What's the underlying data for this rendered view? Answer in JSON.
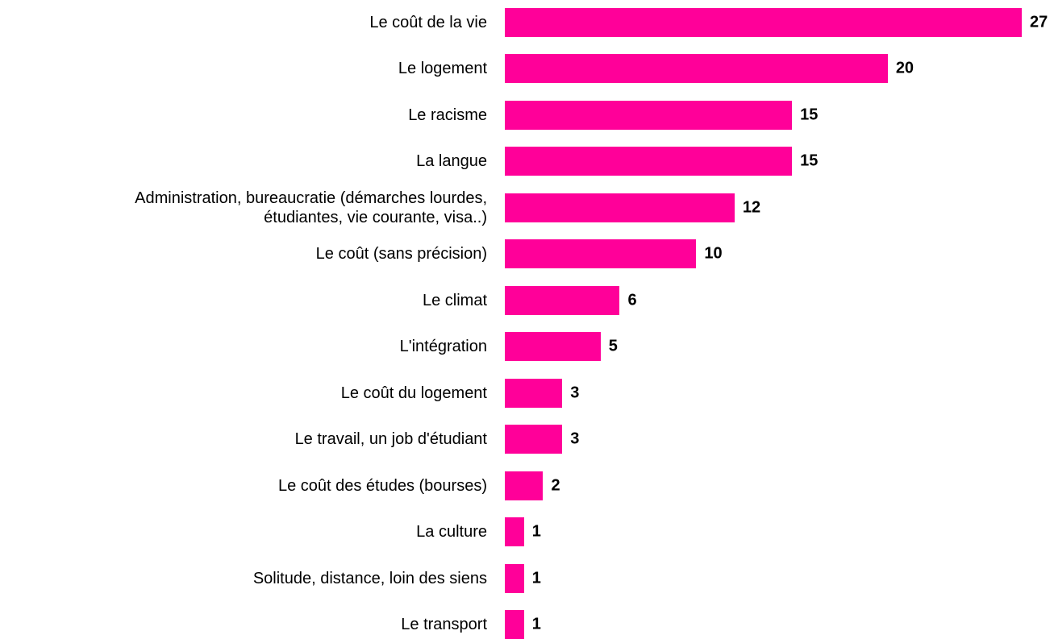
{
  "chart_data": {
    "type": "bar",
    "orientation": "horizontal",
    "color": "#ff0099",
    "categories": [
      "Le coût de la vie",
      "Le logement",
      "Le racisme",
      "La langue",
      "Administration, bureaucratie (démarches lourdes,\nétudiantes, vie courante, visa..)",
      "Le coût (sans précision)",
      "Le climat",
      "L'intégration",
      "Le coût du logement",
      "Le travail, un job d'étudiant",
      "Le coût des études (bourses)",
      "La culture",
      "Solitude, distance, loin des siens",
      "Le transport"
    ],
    "values": [
      27,
      20,
      15,
      15,
      12,
      10,
      6,
      5,
      3,
      3,
      2,
      1,
      1,
      1
    ]
  }
}
